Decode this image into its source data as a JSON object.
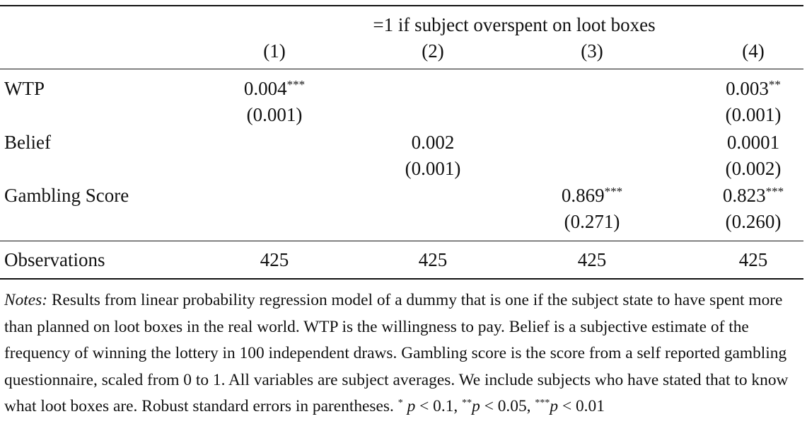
{
  "table": {
    "header_span": "=1 if subject overspent on loot boxes",
    "columns": [
      "(1)",
      "(2)",
      "(3)",
      "(4)"
    ],
    "rows": [
      {
        "label": "WTP",
        "coef": [
          {
            "value": "0.004",
            "stars": "***"
          },
          null,
          null,
          {
            "value": "0.003",
            "stars": "**"
          }
        ],
        "se": [
          "(0.001)",
          null,
          null,
          "(0.001)"
        ]
      },
      {
        "label": "Belief",
        "coef": [
          null,
          {
            "value": "0.002"
          },
          null,
          {
            "value": "0.0001"
          }
        ],
        "se": [
          null,
          "(0.001)",
          null,
          "(0.002)"
        ]
      },
      {
        "label": "Gambling Score",
        "coef": [
          null,
          null,
          {
            "value": "0.869",
            "stars": "***"
          },
          {
            "value": "0.823",
            "stars": "***"
          }
        ],
        "se": [
          null,
          null,
          "(0.271)",
          "(0.260)"
        ]
      }
    ],
    "observations": {
      "label": "Observations",
      "values": [
        "425",
        "425",
        "425",
        "425"
      ]
    }
  },
  "notes": {
    "label": "Notes:",
    "text": "Results from linear probability regression model of a dummy that is one if the subject state to have spent more than planned on loot boxes in the real world. WTP is the willingness to pay. Belief is a subjective estimate of the frequency of winning the lottery in 100 independent draws. Gambling score is the score from a self reported gambling questionnaire, scaled from 0 to 1. All variables are subject averages. We include subjects who have stated that to know what loot boxes are. Robust standard errors in parentheses.",
    "legend": [
      {
        "stars": "*",
        "p": "p",
        "threshold": "< 0.1,"
      },
      {
        "stars": "**",
        "p": "p",
        "threshold": "< 0.05,"
      },
      {
        "stars": "***",
        "p": "p",
        "threshold": "< 0.01"
      }
    ]
  }
}
